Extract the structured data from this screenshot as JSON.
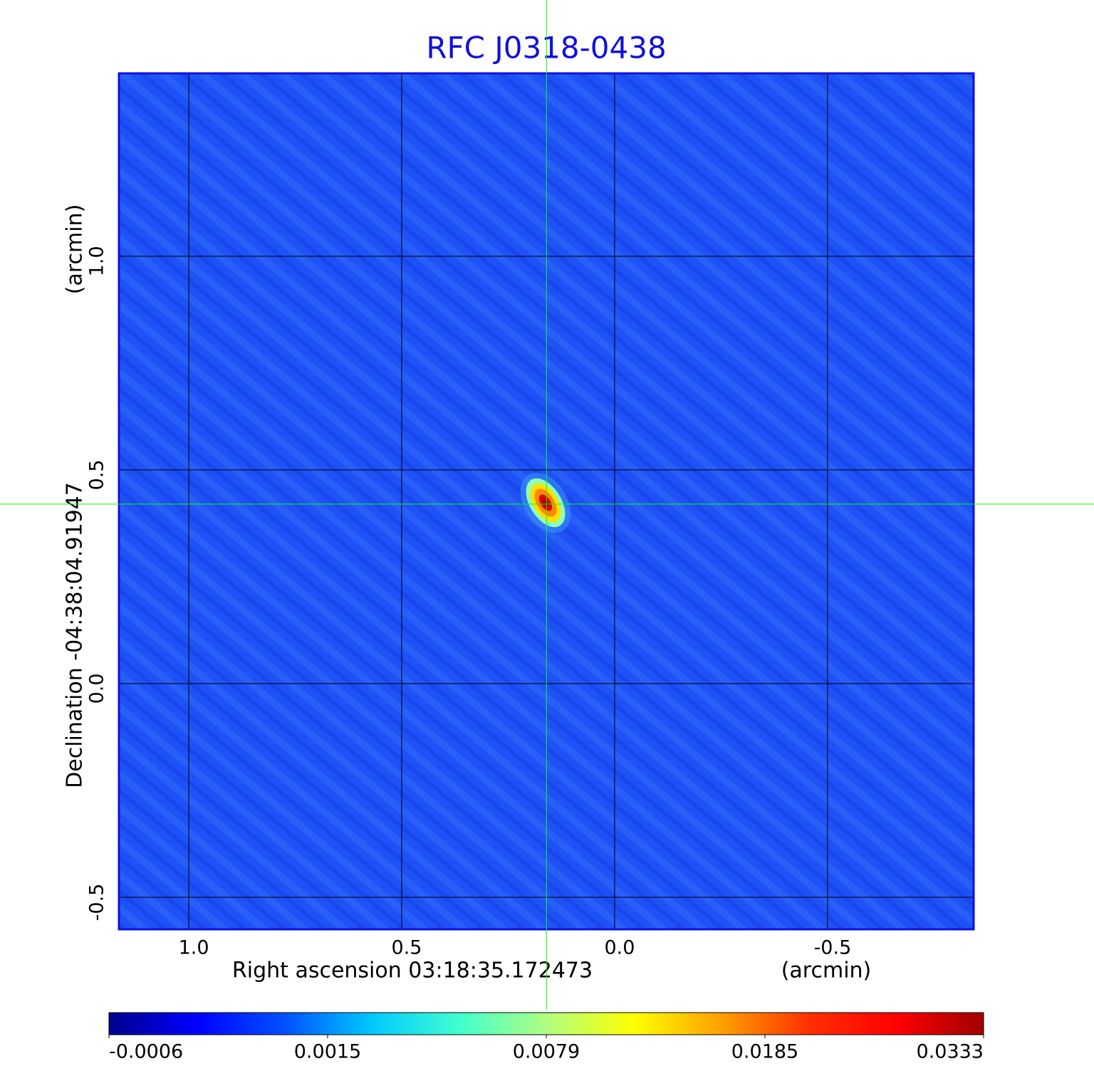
{
  "chart_data": {
    "type": "image",
    "title": "RFC J0318-0438",
    "x_label": "Right ascension  03:18:35.172473",
    "x_unit": "(arcmin)",
    "y_label": "Declination  -04:38:04.91947",
    "y_unit": "(arcmin)",
    "xlim": [
      1.164,
      -0.843
    ],
    "ylim": [
      -0.575,
      1.428
    ],
    "xticks": [
      {
        "value": 1,
        "label": "1.0"
      },
      0.5,
      {
        "value": 0,
        "label": "0.0"
      },
      -0.5
    ],
    "yticks": [
      -0.5,
      {
        "value": 0,
        "label": "0.0"
      },
      0.5,
      {
        "value": 1,
        "label": "1.0"
      }
    ],
    "grid": true,
    "grid_color": "#000000",
    "crosshair": {
      "x": 0.16,
      "y": 0.42,
      "color": "#00ff00"
    },
    "colorbar": {
      "ticks": [
        -0.0006,
        0.0015,
        0.0079,
        0.0185,
        0.0333
      ],
      "colors": [
        "#00008b",
        "#0000ff",
        "#0050ff",
        "#00c8ff",
        "#40ffd0",
        "#b0ff80",
        "#ffff00",
        "#ffa000",
        "#ff3000",
        "#ff0000",
        "#a00000"
      ]
    }
  }
}
